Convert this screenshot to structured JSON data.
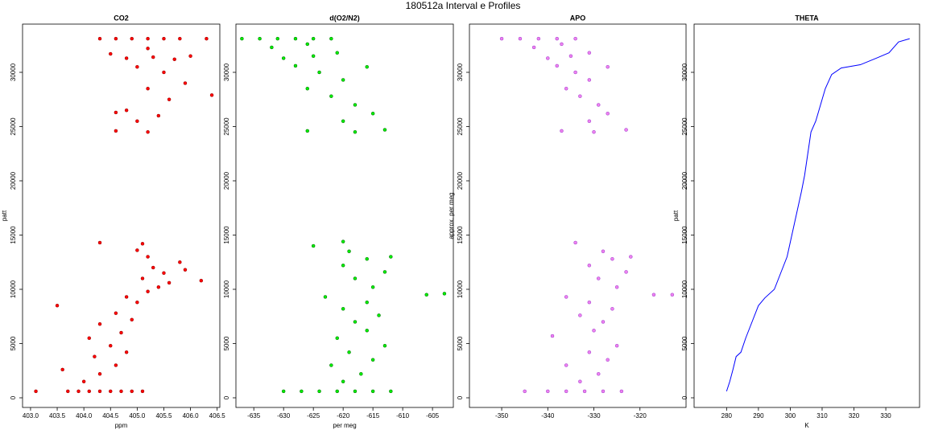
{
  "title": "180512a   Interval e Profiles",
  "chart_data": [
    {
      "type": "scatter",
      "title": "CO2",
      "xlabel": "ppm",
      "ylabel": "patt",
      "color": "#ff0000",
      "edge": "#8b0000",
      "x": [
        403.1,
        403.7,
        403.9,
        404.1,
        404.3,
        404.5,
        404.7,
        404.9,
        405.1,
        404.0,
        404.3,
        403.6,
        404.6,
        404.2,
        404.8,
        404.5,
        404.1,
        404.7,
        404.3,
        404.9,
        404.6,
        403.5,
        405.0,
        404.8,
        405.2,
        405.4,
        405.6,
        405.1,
        405.5,
        405.3,
        405.8,
        405.2,
        405.0,
        404.3,
        405.1,
        405.9,
        406.2,
        404.6,
        405.2,
        405.0,
        405.4,
        404.8,
        405.6,
        405.2,
        405.9,
        405.5,
        405.0,
        404.8,
        405.3,
        405.7,
        404.5,
        406.0,
        405.2,
        404.3,
        404.6,
        404.9,
        405.2,
        405.5,
        405.8,
        406.3,
        406.4,
        404.6
      ],
      "values": [
        600,
        600,
        600,
        600,
        600,
        600,
        600,
        600,
        600,
        1500,
        2200,
        2600,
        3000,
        3800,
        4200,
        4800,
        5500,
        6000,
        6800,
        7200,
        7800,
        8500,
        8800,
        9300,
        9800,
        10200,
        10600,
        11000,
        11500,
        12000,
        12500,
        13000,
        13600,
        14300,
        14200,
        11800,
        10800,
        24600,
        24500,
        25500,
        26000,
        26500,
        27500,
        28500,
        29000,
        30000,
        30500,
        31300,
        31400,
        31200,
        31700,
        31500,
        32200,
        33100,
        33100,
        33100,
        33100,
        33100,
        33100,
        33100,
        27900,
        26300
      ],
      "xlim": [
        402.85,
        406.55
      ],
      "ylim": [
        -889,
        34444
      ],
      "xticks": [
        {
          "value": 403,
          "label": "403.0"
        },
        403.5,
        {
          "value": 404,
          "label": "404.0"
        },
        404.5,
        {
          "value": 405,
          "label": "405.0"
        },
        405.5,
        {
          "value": 406,
          "label": "406.0"
        },
        406.5
      ],
      "yticks": [
        0,
        5000,
        10000,
        15000,
        20000,
        25000,
        30000
      ]
    },
    {
      "type": "scatter",
      "title": "d(O2/N2)",
      "xlabel": "per meg",
      "color": "#00ee00",
      "edge": "#006400",
      "x": [
        -630,
        -627,
        -624,
        -621,
        -618,
        -615,
        -612,
        -620,
        -617,
        -622,
        -615,
        -619,
        -613,
        -621,
        -616,
        -618,
        -614,
        -620,
        -616,
        -623,
        -606,
        -603,
        -615,
        -618,
        -613,
        -620,
        -616,
        -619,
        -620,
        -625,
        -612,
        -626,
        -618,
        -613,
        -620,
        -615,
        -618,
        -622,
        -626,
        -620,
        -624,
        -628,
        -616,
        -630,
        -625,
        -621,
        -632,
        -626,
        -637,
        -634,
        -631,
        -628,
        -625,
        -622
      ],
      "values": [
        600,
        600,
        600,
        600,
        600,
        600,
        600,
        1500,
        2200,
        3000,
        3500,
        4200,
        4800,
        5500,
        6200,
        7000,
        7600,
        8200,
        8800,
        9300,
        9500,
        9600,
        10200,
        11000,
        11600,
        12200,
        12800,
        13500,
        14400,
        14000,
        13000,
        24600,
        24500,
        24700,
        25500,
        26200,
        27000,
        27800,
        28500,
        29300,
        30000,
        30600,
        30500,
        31300,
        31500,
        31800,
        32300,
        32600,
        33100,
        33100,
        33100,
        33100,
        33100,
        33100
      ],
      "xlim": [
        -638,
        -601.5
      ],
      "ylim": [
        -889,
        34444
      ],
      "xticks": [
        -635,
        -630,
        -625,
        -620,
        -615,
        -610,
        -605
      ],
      "yticks": [
        0,
        5000,
        10000,
        15000,
        20000,
        25000,
        30000
      ]
    },
    {
      "type": "scatter",
      "title": "APO",
      "ylabel": "approx. per meg",
      "color": "#ee82ee",
      "edge": "#9932cc",
      "x": [
        -345,
        -340,
        -336,
        -332,
        -328,
        -324,
        -333,
        -329,
        -336,
        -327,
        -331,
        -325,
        -339,
        -330,
        -328,
        -333,
        -326,
        -331,
        -336,
        -317,
        -313,
        -325,
        -329,
        -323,
        -331,
        -326,
        -328,
        -334,
        -322,
        -337,
        -330,
        -323,
        -331,
        -327,
        -329,
        -333,
        -336,
        -331,
        -334,
        -338,
        -327,
        -340,
        -335,
        -331,
        -343,
        -337,
        -350,
        -346,
        -342,
        -338,
        -334
      ],
      "values": [
        600,
        600,
        600,
        600,
        600,
        600,
        1500,
        2200,
        3000,
        3500,
        4200,
        4800,
        5700,
        6200,
        7000,
        7600,
        8200,
        8800,
        9300,
        9500,
        9500,
        10200,
        11000,
        11600,
        12200,
        12800,
        13500,
        14300,
        13000,
        24600,
        24500,
        24700,
        25500,
        26200,
        27000,
        27800,
        28500,
        29300,
        30000,
        30600,
        30500,
        31300,
        31500,
        31800,
        32300,
        32600,
        33100,
        33100,
        33100,
        33100,
        33100
      ],
      "xlim": [
        -357,
        -310
      ],
      "ylim": [
        -889,
        34444
      ],
      "xticks": [
        -350,
        -340,
        -330,
        -320
      ],
      "yticks": [
        0,
        5000,
        10000,
        15000,
        20000,
        25000,
        30000
      ]
    },
    {
      "type": "line",
      "title": "THETA",
      "xlabel": "K",
      "ylabel": "patt",
      "color": "#0000ff",
      "x": [
        280,
        281,
        282,
        283,
        284.5,
        286,
        288,
        290,
        292,
        295,
        297,
        299,
        300.5,
        302,
        303.5,
        304.5,
        305.5,
        306.5,
        308,
        309.5,
        311,
        313,
        316,
        322,
        327,
        331,
        334,
        337.5
      ],
      "values": [
        600,
        1500,
        2600,
        3800,
        4200,
        5500,
        7000,
        8500,
        9200,
        10000,
        11500,
        13000,
        15000,
        17000,
        19000,
        20500,
        22500,
        24500,
        25500,
        27000,
        28500,
        29800,
        30400,
        30700,
        31300,
        31800,
        32800,
        33100
      ],
      "xlim": [
        269.8,
        340.6
      ],
      "ylim": [
        -889,
        34444
      ],
      "xticks": [
        280,
        290,
        300,
        310,
        320,
        330
      ],
      "yticks": [
        0,
        5000,
        10000,
        15000,
        20000,
        25000,
        30000
      ]
    }
  ]
}
